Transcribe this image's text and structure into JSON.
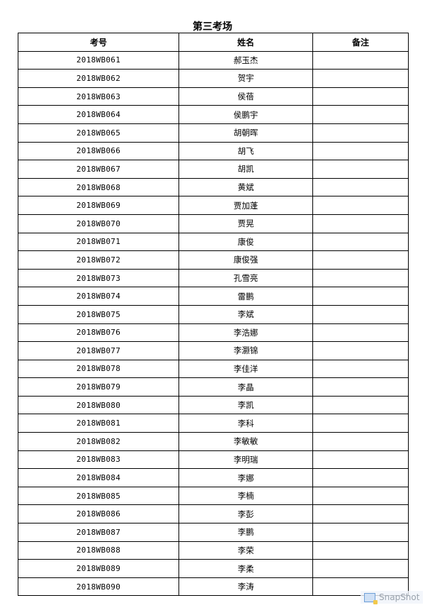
{
  "title": "第三考场",
  "headers": [
    "考号",
    "姓名",
    "备注"
  ],
  "rows": [
    {
      "id": "2018WB061",
      "name": "郝玉杰",
      "note": ""
    },
    {
      "id": "2018WB062",
      "name": "贺宇",
      "note": ""
    },
    {
      "id": "2018WB063",
      "name": "侯蓓",
      "note": ""
    },
    {
      "id": "2018WB064",
      "name": "侯鹏宇",
      "note": ""
    },
    {
      "id": "2018WB065",
      "name": "胡朝晖",
      "note": ""
    },
    {
      "id": "2018WB066",
      "name": "胡飞",
      "note": ""
    },
    {
      "id": "2018WB067",
      "name": "胡凯",
      "note": ""
    },
    {
      "id": "2018WB068",
      "name": "黄斌",
      "note": ""
    },
    {
      "id": "2018WB069",
      "name": "贾加蓬",
      "note": ""
    },
    {
      "id": "2018WB070",
      "name": "贾晃",
      "note": ""
    },
    {
      "id": "2018WB071",
      "name": "康俊",
      "note": ""
    },
    {
      "id": "2018WB072",
      "name": "康俊强",
      "note": ""
    },
    {
      "id": "2018WB073",
      "name": "孔雪亮",
      "note": ""
    },
    {
      "id": "2018WB074",
      "name": "雷鹏",
      "note": ""
    },
    {
      "id": "2018WB075",
      "name": "李斌",
      "note": ""
    },
    {
      "id": "2018WB076",
      "name": "李浩娜",
      "note": ""
    },
    {
      "id": "2018WB077",
      "name": "李灏锦",
      "note": ""
    },
    {
      "id": "2018WB078",
      "name": "李佳洋",
      "note": ""
    },
    {
      "id": "2018WB079",
      "name": "李晶",
      "note": ""
    },
    {
      "id": "2018WB080",
      "name": "李凯",
      "note": ""
    },
    {
      "id": "2018WB081",
      "name": "李科",
      "note": ""
    },
    {
      "id": "2018WB082",
      "name": "李敏敏",
      "note": ""
    },
    {
      "id": "2018WB083",
      "name": "李明瑞",
      "note": ""
    },
    {
      "id": "2018WB084",
      "name": "李娜",
      "note": ""
    },
    {
      "id": "2018WB085",
      "name": "李楠",
      "note": ""
    },
    {
      "id": "2018WB086",
      "name": "李彭",
      "note": ""
    },
    {
      "id": "2018WB087",
      "name": "李鹏",
      "note": ""
    },
    {
      "id": "2018WB088",
      "name": "李荣",
      "note": ""
    },
    {
      "id": "2018WB089",
      "name": "李柔",
      "note": ""
    },
    {
      "id": "2018WB090",
      "name": "李涛",
      "note": ""
    }
  ],
  "watermark": {
    "text": "SnapShot",
    "icon": "snapshot-icon"
  }
}
